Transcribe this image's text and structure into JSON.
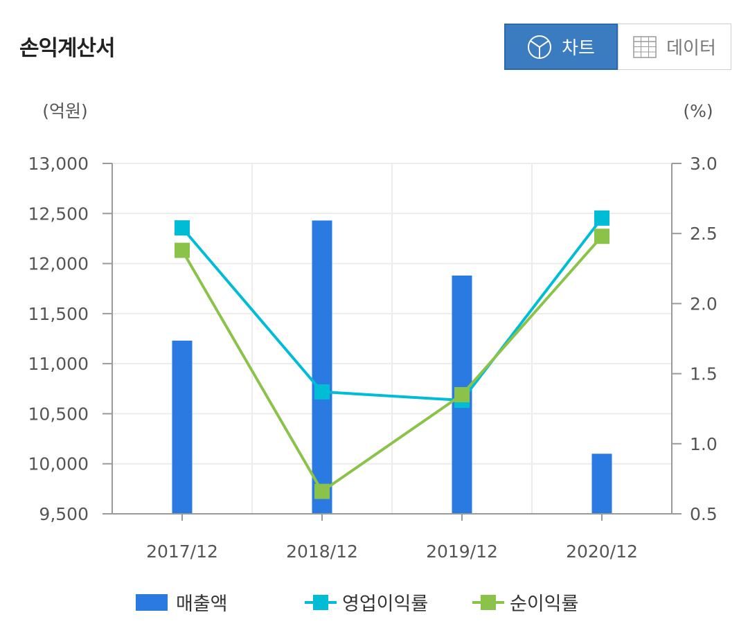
{
  "header": {
    "title": "손익계산서",
    "chart_button_label": "차트",
    "data_button_label": "데이터"
  },
  "colors": {
    "bar": "#2a7ae2",
    "operating_margin": "#00bcd4",
    "net_margin": "#8bc34a",
    "toggle_active": "#3b7cc0"
  },
  "chart_data": {
    "type": "bar",
    "categories": [
      "2017/12",
      "2018/12",
      "2019/12",
      "2020/12"
    ],
    "y_left": {
      "unit_label": "(억원)",
      "ylim": [
        9500,
        13000
      ],
      "ticks": [
        9500,
        10000,
        10500,
        11000,
        11500,
        12000,
        12500,
        13000
      ],
      "tick_labels": [
        "9,500",
        "10,000",
        "10,500",
        "11,000",
        "11,500",
        "12,000",
        "12,500",
        "13,000"
      ]
    },
    "y_right": {
      "unit_label": "(%)",
      "ylim": [
        0.5,
        3.0
      ],
      "ticks": [
        0.5,
        1.0,
        1.5,
        2.0,
        2.5,
        3.0
      ],
      "tick_labels": [
        "0.5",
        "1.0",
        "1.5",
        "2.0",
        "2.5",
        "3.0"
      ]
    },
    "series": [
      {
        "name": "매출액",
        "type": "bar",
        "axis": "left",
        "values": [
          11230,
          12430,
          11880,
          10100
        ]
      },
      {
        "name": "영업이익률",
        "type": "line",
        "axis": "right",
        "values": [
          2.54,
          1.37,
          1.31,
          2.61
        ]
      },
      {
        "name": "순이익률",
        "type": "line",
        "axis": "right",
        "values": [
          2.38,
          0.66,
          1.35,
          2.48
        ]
      }
    ],
    "grid": true,
    "legend": "bottom"
  }
}
